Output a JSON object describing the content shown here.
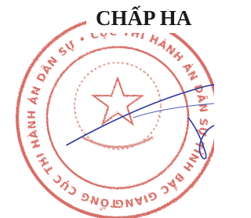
{
  "heading": "CHẤP HA",
  "stamp": {
    "ring_text": "TỔNG CỤC THI HÀNH ÁN DÂN SỰ • CỤC THI HÀNH ÁN DÂN SỰ TỈNH BẮC GIANG •"
  }
}
